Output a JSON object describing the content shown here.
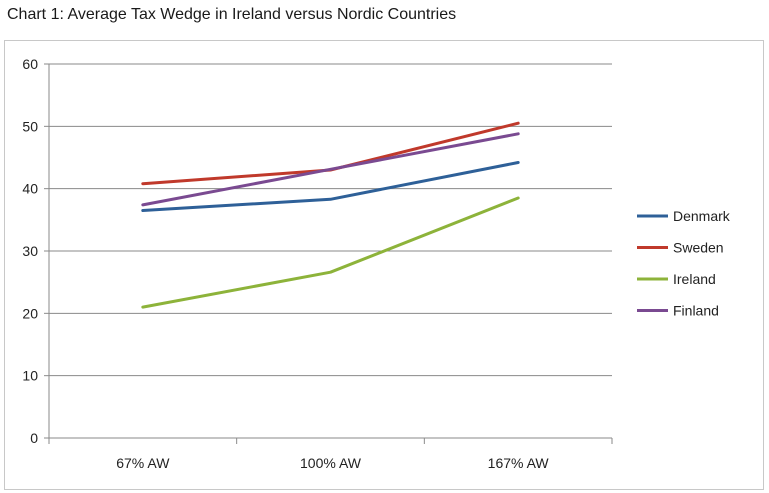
{
  "title": "Chart 1: Average Tax Wedge in Ireland versus Nordic Countries",
  "chart_data": {
    "type": "line",
    "title": "Chart 1: Average Tax Wedge in Ireland versus Nordic Countries",
    "xlabel": "",
    "ylabel": "",
    "categories": [
      "67% AW",
      "100% AW",
      "167% AW"
    ],
    "ylim": [
      0,
      60
    ],
    "yticks": [
      0,
      10,
      20,
      30,
      40,
      50,
      60
    ],
    "grid": true,
    "legend": "right",
    "series": [
      {
        "name": "Denmark",
        "color": "#2e6098",
        "values": [
          36.5,
          38.3,
          44.2
        ]
      },
      {
        "name": "Sweden",
        "color": "#c0392b",
        "values": [
          40.8,
          43.0,
          50.5
        ]
      },
      {
        "name": "Ireland",
        "color": "#8db33a",
        "values": [
          21.0,
          26.6,
          38.5
        ]
      },
      {
        "name": "Finland",
        "color": "#7a4a91",
        "values": [
          37.4,
          43.1,
          48.8
        ]
      }
    ]
  }
}
